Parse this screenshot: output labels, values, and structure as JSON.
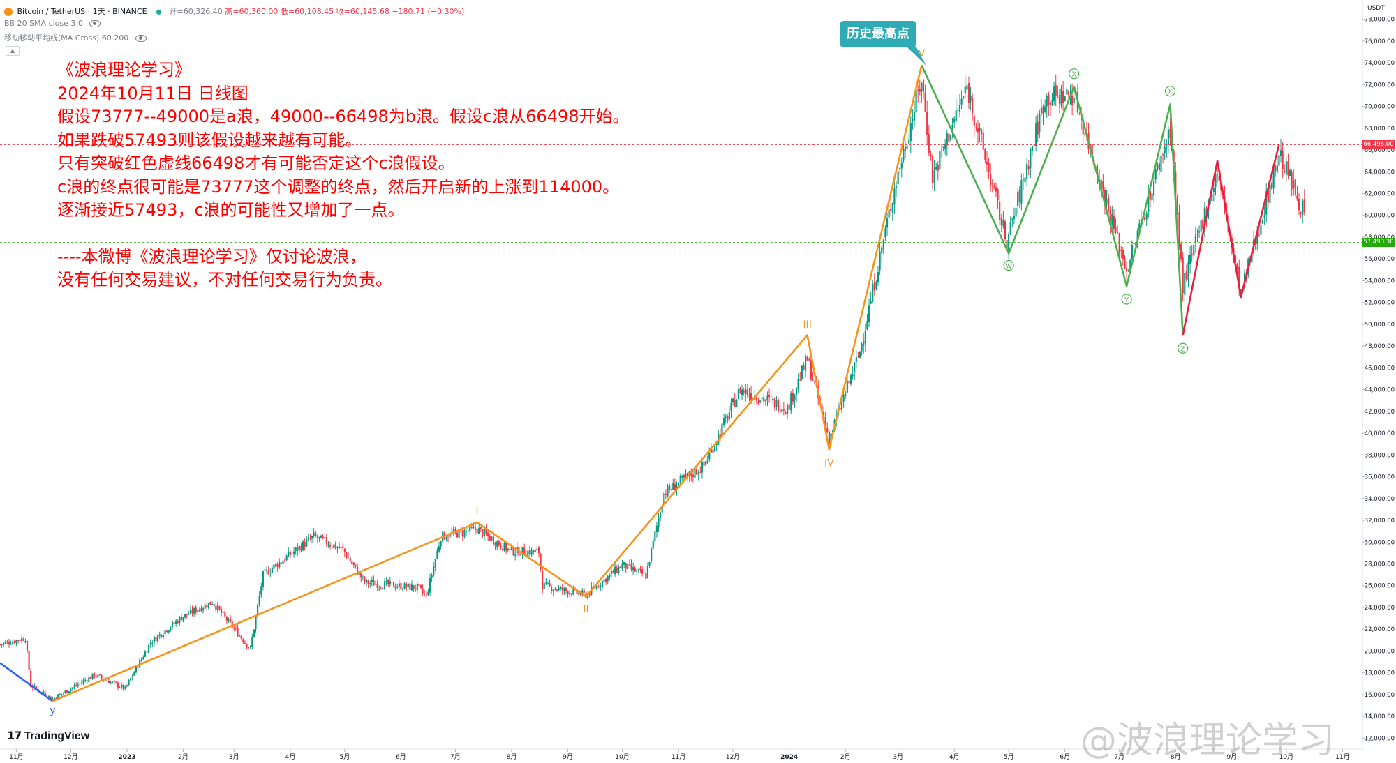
{
  "header": {
    "symbol": "Bitcoin / TetherUS · 1天 · BINANCE",
    "open": "开=60,326.40",
    "high": "高=60,360.00",
    "low": "低=60,108.45",
    "close": "收=60,145.68",
    "change": "−180.71 (−0.30%)",
    "indicator1": "BB 20 SMA close 3 0",
    "indicator2": "移动移动平均线(MA Cross) 60 200"
  },
  "annotation": {
    "lines": [
      "《波浪理论学习》",
      "2024年10月11日 日线图",
      "假设73777--49000是a浪，49000--66498为b浪。假设c浪从66498开始。",
      "如果跌破57493则该假设越来越有可能。",
      "只有突破红色虚线66498才有可能否定这个c浪假设。",
      "c浪的终点很可能是73777这个调整的终点，然后开启新的上涨到114000。",
      "逐渐接近57493，c浪的可能性又增加了一点。",
      "----本微博《波浪理论学习》仅讨论波浪，",
      "没有任何交易建议，不对任何交易行为负责。"
    ]
  },
  "callout": "历史最高点",
  "branding": {
    "logo": "TradingView",
    "watermark": "@波浪理论学习"
  },
  "colors": {
    "up": "#089981",
    "down": "#f23645",
    "impulse": "#f7931a",
    "correction_green": "#4caf50",
    "correction_red": "#e91e3f",
    "y_wave": "#2962ff",
    "resistance": "#f23645",
    "support": "#22ab09",
    "callout": "#2eabb4"
  },
  "chart_data": {
    "type": "candlestick",
    "currency": "USDT",
    "ylim": [
      11000,
      79000
    ],
    "y_ticks": [
      "12,000.00",
      "14,000.00",
      "16,000.00",
      "18,000.00",
      "20,000.00",
      "22,000.00",
      "24,000.00",
      "26,000.00",
      "28,000.00",
      "30,000.00",
      "32,000.00",
      "34,000.00",
      "36,000.00",
      "38,000.00",
      "40,000.00",
      "42,000.00",
      "44,000.00",
      "46,000.00",
      "48,000.00",
      "50,000.00",
      "52,000.00",
      "54,000.00",
      "56,000.00",
      "58,000.00",
      "60,000.00",
      "62,000.00",
      "64,000.00",
      "66,000.00",
      "68,000.00",
      "70,000.00",
      "72,000.00",
      "74,000.00",
      "76,000.00",
      "78,000.00"
    ],
    "x_ticks": [
      {
        "date": "2022-11-01",
        "label": "11月"
      },
      {
        "date": "2022-12-01",
        "label": "12月"
      },
      {
        "date": "2023-01-01",
        "label": "2023"
      },
      {
        "date": "2023-02-01",
        "label": "2月"
      },
      {
        "date": "2023-03-01",
        "label": "3月"
      },
      {
        "date": "2023-04-01",
        "label": "4月"
      },
      {
        "date": "2023-05-01",
        "label": "5月"
      },
      {
        "date": "2023-06-01",
        "label": "6月"
      },
      {
        "date": "2023-07-01",
        "label": "7月"
      },
      {
        "date": "2023-08-01",
        "label": "8月"
      },
      {
        "date": "2023-09-01",
        "label": "9月"
      },
      {
        "date": "2023-10-01",
        "label": "10月"
      },
      {
        "date": "2023-11-01",
        "label": "11月"
      },
      {
        "date": "2023-12-01",
        "label": "12月"
      },
      {
        "date": "2024-01-01",
        "label": "2024"
      },
      {
        "date": "2024-02-01",
        "label": "2月"
      },
      {
        "date": "2024-03-01",
        "label": "3月"
      },
      {
        "date": "2024-04-01",
        "label": "4月"
      },
      {
        "date": "2024-05-01",
        "label": "5月"
      },
      {
        "date": "2024-06-01",
        "label": "6月"
      },
      {
        "date": "2024-07-01",
        "label": "7月"
      },
      {
        "date": "2024-08-01",
        "label": "8月"
      },
      {
        "date": "2024-09-01",
        "label": "9月"
      },
      {
        "date": "2024-10-01",
        "label": "10月"
      },
      {
        "date": "2024-11-01",
        "label": "11月"
      }
    ],
    "x_range": [
      "2022-10-23",
      "2024-11-12"
    ],
    "anchors": [
      [
        "2022-10-23",
        20600
      ],
      [
        "2022-11-06",
        21200
      ],
      [
        "2022-11-09",
        16800
      ],
      [
        "2022-11-21",
        15600
      ],
      [
        "2022-12-14",
        17800
      ],
      [
        "2022-12-31",
        16550
      ],
      [
        "2023-01-14",
        20800
      ],
      [
        "2023-01-31",
        23100
      ],
      [
        "2023-02-17",
        24500
      ],
      [
        "2023-03-10",
        20200
      ],
      [
        "2023-03-17",
        27000
      ],
      [
        "2023-04-14",
        30500
      ],
      [
        "2023-04-30",
        29300
      ],
      [
        "2023-05-12",
        26300
      ],
      [
        "2023-06-10",
        25800
      ],
      [
        "2023-06-15",
        25000
      ],
      [
        "2023-06-23",
        30500
      ],
      [
        "2023-07-13",
        31200
      ],
      [
        "2023-07-31",
        29200
      ],
      [
        "2023-08-16",
        29100
      ],
      [
        "2023-08-18",
        26000
      ],
      [
        "2023-09-11",
        25150
      ],
      [
        "2023-10-01",
        27900
      ],
      [
        "2023-10-14",
        26900
      ],
      [
        "2023-10-24",
        34500
      ],
      [
        "2023-11-15",
        37000
      ],
      [
        "2023-12-05",
        44000
      ],
      [
        "2023-12-31",
        42300
      ],
      [
        "2024-01-11",
        46800
      ],
      [
        "2024-01-23",
        39500
      ],
      [
        "2024-02-09",
        47500
      ],
      [
        "2024-02-28",
        62500
      ],
      [
        "2024-03-14",
        72500
      ],
      [
        "2024-03-20",
        63500
      ],
      [
        "2024-04-08",
        71800
      ],
      [
        "2024-04-30",
        57500
      ],
      [
        "2024-05-21",
        70800
      ],
      [
        "2024-06-06",
        71100
      ],
      [
        "2024-07-05",
        55000
      ],
      [
        "2024-07-29",
        68000
      ],
      [
        "2024-08-05",
        53500
      ],
      [
        "2024-08-24",
        64000
      ],
      [
        "2024-09-06",
        52800
      ],
      [
        "2024-09-27",
        65700
      ],
      [
        "2024-10-11",
        60145
      ]
    ],
    "levels": [
      {
        "name": "resistance",
        "value": 66498.0,
        "label": "66,498.00"
      },
      {
        "name": "support",
        "value": 57493.3,
        "label": "57,493.30"
      }
    ],
    "waves": {
      "y_leg": [
        [
          "2022-10-23",
          18900
        ],
        [
          "2022-11-21",
          15400
        ]
      ],
      "impulse": [
        [
          "2022-11-21",
          15400
        ],
        [
          "2023-07-13",
          31800
        ],
        [
          "2023-09-11",
          25000
        ],
        [
          "2024-01-11",
          49000
        ],
        [
          "2024-01-23",
          38500
        ],
        [
          "2024-03-14",
          73777
        ]
      ],
      "green_wxy": [
        [
          "2024-03-14",
          73777
        ],
        [
          "2024-05-01",
          56500
        ],
        [
          "2024-06-06",
          71800
        ],
        [
          "2024-07-05",
          53500
        ],
        [
          "2024-07-29",
          70200
        ],
        [
          "2024-08-05",
          49000
        ]
      ],
      "red_leg": [
        [
          "2024-08-05",
          49000
        ],
        [
          "2024-08-24",
          65000
        ],
        [
          "2024-09-06",
          52500
        ],
        [
          "2024-09-27",
          66498
        ]
      ]
    },
    "wave_labels": [
      {
        "text": "y",
        "date": "2022-11-21",
        "value": 14600,
        "color": "#2962ff",
        "pos": "below"
      },
      {
        "text": "I",
        "date": "2023-07-13",
        "value": 32900,
        "color": "#f7931a",
        "pos": "above"
      },
      {
        "text": "II",
        "date": "2023-09-11",
        "value": 23900,
        "color": "#f7931a",
        "pos": "below"
      },
      {
        "text": "III",
        "date": "2024-01-11",
        "value": 50000,
        "color": "#f7931a",
        "pos": "above"
      },
      {
        "text": "IV",
        "date": "2024-01-23",
        "value": 37300,
        "color": "#f7931a",
        "pos": "below"
      },
      {
        "text": "V",
        "date": "2024-03-14",
        "value": 74900,
        "color": "#f7931a",
        "pos": "above"
      },
      {
        "text": "W",
        "date": "2024-05-01",
        "value": 55400,
        "color": "#4caf50",
        "pos": "circle"
      },
      {
        "text": "X",
        "date": "2024-06-06",
        "value": 73000,
        "color": "#4caf50",
        "pos": "circle"
      },
      {
        "text": "Y",
        "date": "2024-07-05",
        "value": 52300,
        "color": "#4caf50",
        "pos": "circle"
      },
      {
        "text": "X",
        "date": "2024-07-29",
        "value": 71400,
        "color": "#4caf50",
        "pos": "circle"
      },
      {
        "text": "Z",
        "date": "2024-08-05",
        "value": 47800,
        "color": "#4caf50",
        "pos": "circle"
      }
    ]
  }
}
